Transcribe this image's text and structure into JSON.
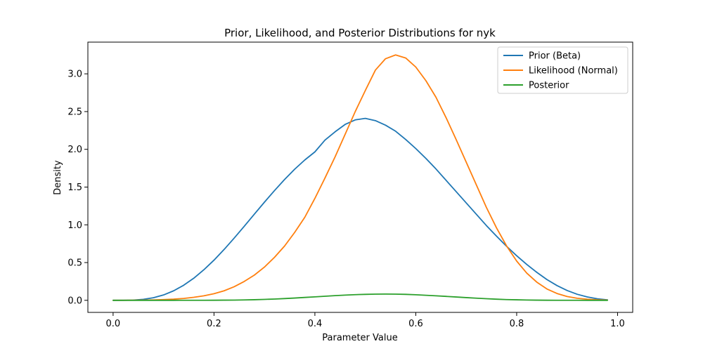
{
  "chart_data": {
    "type": "line",
    "title": "Prior, Likelihood, and Posterior Distributions for nyk",
    "xlabel": "Parameter Value",
    "ylabel": "Density",
    "xlim": [
      -0.05,
      1.03
    ],
    "ylim": [
      -0.16,
      3.42
    ],
    "xticks": [
      0.0,
      0.2,
      0.4,
      0.6,
      0.8,
      1.0
    ],
    "xtick_labels": [
      "0.0",
      "0.2",
      "0.4",
      "0.6",
      "0.8",
      "1.0"
    ],
    "yticks": [
      0.0,
      0.5,
      1.0,
      1.5,
      2.0,
      2.5,
      3.0
    ],
    "ytick_labels": [
      "0.0",
      "0.5",
      "1.0",
      "1.5",
      "2.0",
      "2.5",
      "3.0"
    ],
    "grid": false,
    "legend_position": "top-right",
    "x": [
      0.0,
      0.02,
      0.04,
      0.06,
      0.08,
      0.1,
      0.12,
      0.14,
      0.16,
      0.18,
      0.2,
      0.22,
      0.24,
      0.26,
      0.28,
      0.3,
      0.32,
      0.34,
      0.36,
      0.38,
      0.4,
      0.42,
      0.44,
      0.46,
      0.48,
      0.5,
      0.52,
      0.54,
      0.56,
      0.58,
      0.6,
      0.62,
      0.64,
      0.66,
      0.68,
      0.7,
      0.72,
      0.74,
      0.76,
      0.78,
      0.8,
      0.82,
      0.84,
      0.86,
      0.88,
      0.9,
      0.92,
      0.94,
      0.96,
      0.98
    ],
    "series": [
      {
        "name": "Prior (Beta)",
        "color": "#1f77b4",
        "values": [
          0.0,
          0.0003,
          0.003,
          0.013,
          0.034,
          0.071,
          0.126,
          0.2,
          0.293,
          0.405,
          0.532,
          0.673,
          0.824,
          0.981,
          1.141,
          1.3,
          1.454,
          1.601,
          1.737,
          1.859,
          1.966,
          2.122,
          2.232,
          2.33,
          2.39,
          2.41,
          2.38,
          2.32,
          2.24,
          2.13,
          2.01,
          1.88,
          1.74,
          1.59,
          1.44,
          1.29,
          1.14,
          0.99,
          0.85,
          0.715,
          0.59,
          0.475,
          0.37,
          0.275,
          0.195,
          0.13,
          0.08,
          0.045,
          0.02,
          0.006
        ]
      },
      {
        "name": "Likelihood (Normal)",
        "color": "#ff7f0e",
        "values": [
          0.0003,
          0.0006,
          0.0012,
          0.0025,
          0.005,
          0.009,
          0.015,
          0.025,
          0.04,
          0.06,
          0.088,
          0.126,
          0.18,
          0.25,
          0.334,
          0.44,
          0.57,
          0.72,
          0.9,
          1.1,
          1.35,
          1.62,
          1.9,
          2.2,
          2.5,
          2.78,
          3.05,
          3.2,
          3.25,
          3.21,
          3.09,
          2.91,
          2.69,
          2.42,
          2.13,
          1.83,
          1.53,
          1.23,
          0.96,
          0.72,
          0.52,
          0.36,
          0.24,
          0.15,
          0.09,
          0.05,
          0.027,
          0.014,
          0.007,
          0.003
        ]
      },
      {
        "name": "Posterior",
        "color": "#2ca02c",
        "values": [
          0.0,
          0.0,
          0.0,
          0.0,
          0.0,
          0.0,
          0.0,
          0.0001,
          0.0002,
          0.0005,
          0.001,
          0.002,
          0.003,
          0.005,
          0.008,
          0.012,
          0.017,
          0.023,
          0.03,
          0.038,
          0.046,
          0.054,
          0.062,
          0.069,
          0.075,
          0.079,
          0.082,
          0.083,
          0.082,
          0.079,
          0.074,
          0.067,
          0.06,
          0.052,
          0.044,
          0.036,
          0.028,
          0.021,
          0.015,
          0.01,
          0.007,
          0.004,
          0.002,
          0.001,
          0.0005,
          0.0002,
          0.0001,
          0.0,
          0.0,
          0.0
        ]
      }
    ]
  }
}
